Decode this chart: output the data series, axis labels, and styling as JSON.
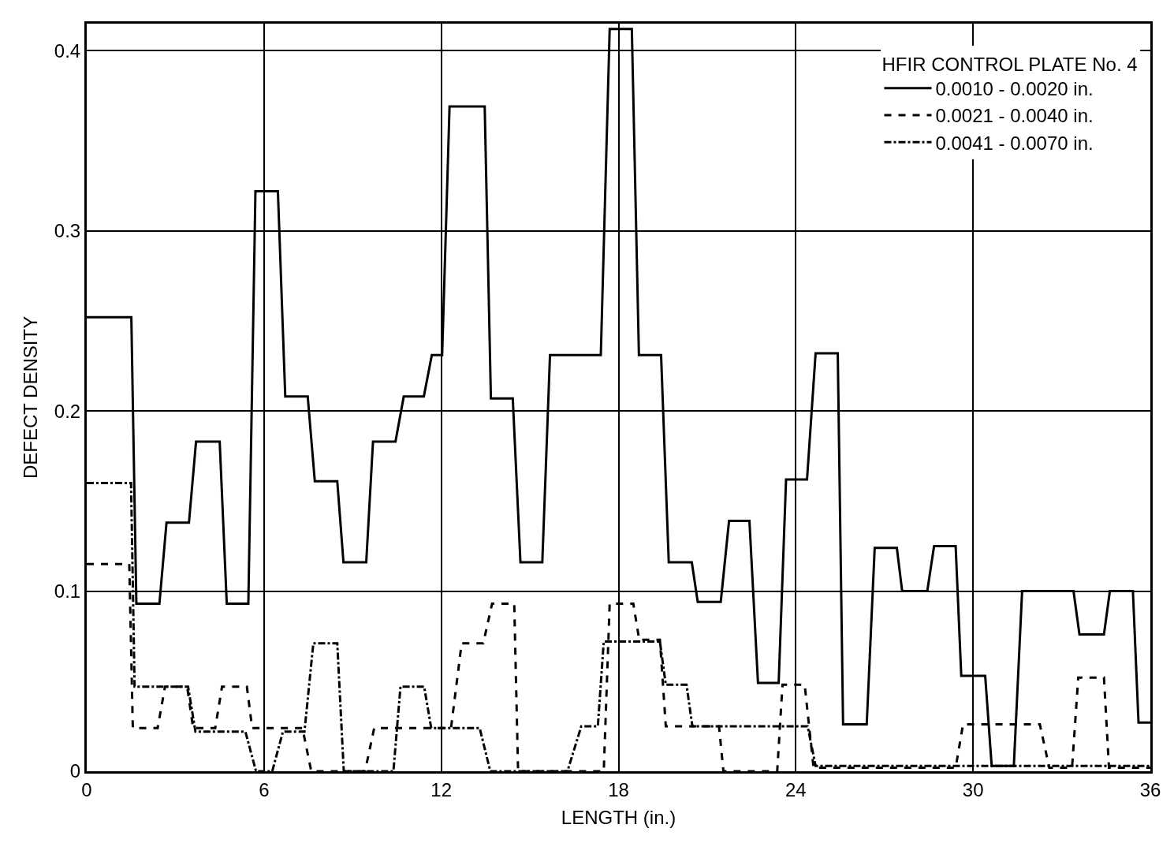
{
  "chart_data": {
    "type": "line",
    "xlabel": "LENGTH (in.)",
    "ylabel": "DEFECT DENSITY",
    "legend_title": "HFIR CONTROL PLATE No. 4",
    "xlim": [
      0,
      36
    ],
    "xticks": [
      0,
      6,
      12,
      18,
      24,
      30,
      36
    ],
    "ylim": [
      0,
      0.415
    ],
    "yticks": [
      0,
      0.1,
      0.2,
      0.3,
      0.4
    ],
    "grid": true,
    "legend": "top right",
    "marker": "none",
    "series": [
      {
        "name": "0.0010 - 0.0020 in.",
        "color": "#000000",
        "line_style": "solid",
        "x": [
          0,
          1.51,
          1.68,
          2.46,
          2.7,
          3.46,
          3.7,
          4.5,
          4.74,
          5.47,
          5.71,
          6.47,
          6.72,
          7.48,
          7.72,
          8.48,
          8.69,
          9.46,
          9.69,
          10.45,
          10.73,
          11.41,
          11.68,
          12.03,
          12.28,
          13.47,
          13.68,
          14.42,
          14.68,
          15.42,
          15.68,
          17.4,
          17.7,
          18.45,
          18.69,
          19.44,
          19.7,
          20.48,
          20.68,
          21.46,
          21.74,
          22.43,
          22.72,
          23.42,
          23.67,
          24.38,
          24.67,
          25.42,
          25.6,
          26.4,
          26.67,
          27.42,
          27.6,
          28.45,
          28.68,
          29.41,
          29.6,
          30.41,
          30.63,
          31.38,
          31.66,
          33.4,
          33.6,
          34.43,
          34.63,
          35.41,
          35.6,
          36
        ],
        "values": [
          0.252,
          0.252,
          0.093,
          0.093,
          0.138,
          0.138,
          0.183,
          0.183,
          0.093,
          0.093,
          0.322,
          0.322,
          0.208,
          0.208,
          0.161,
          0.161,
          0.116,
          0.116,
          0.183,
          0.183,
          0.208,
          0.208,
          0.231,
          0.231,
          0.369,
          0.369,
          0.207,
          0.207,
          0.116,
          0.116,
          0.231,
          0.231,
          0.412,
          0.412,
          0.231,
          0.231,
          0.116,
          0.116,
          0.094,
          0.094,
          0.139,
          0.139,
          0.049,
          0.049,
          0.162,
          0.162,
          0.232,
          0.232,
          0.026,
          0.026,
          0.124,
          0.124,
          0.1,
          0.1,
          0.125,
          0.125,
          0.053,
          0.053,
          0.003,
          0.003,
          0.1,
          0.1,
          0.076,
          0.076,
          0.1,
          0.1,
          0.027,
          0.027
        ]
      },
      {
        "name": "0.0021 - 0.0040 in.",
        "color": "#000000",
        "line_style": "dashed",
        "x": [
          0,
          1.44,
          1.56,
          2.4,
          2.65,
          3.4,
          3.6,
          4.35,
          4.58,
          5.42,
          5.6,
          7.3,
          7.6,
          9.42,
          9.73,
          12.33,
          12.69,
          13.42,
          13.72,
          14.47,
          14.6,
          17.5,
          17.7,
          18.5,
          18.7,
          19.4,
          19.6,
          21.4,
          21.55,
          23.37,
          23.55,
          24.3,
          24.6,
          29.41,
          29.66,
          32.26,
          32.58,
          33.35,
          33.56,
          34.43,
          34.6,
          36
        ],
        "values": [
          0.115,
          0.115,
          0.024,
          0.024,
          0.047,
          0.047,
          0.024,
          0.024,
          0.047,
          0.047,
          0.024,
          0.024,
          0,
          0,
          0.024,
          0.024,
          0.071,
          0.071,
          0.093,
          0.093,
          0,
          0,
          0.093,
          0.093,
          0.073,
          0.073,
          0.025,
          0.025,
          0,
          0,
          0.048,
          0.048,
          0.002,
          0.002,
          0.026,
          0.026,
          0.002,
          0.002,
          0.052,
          0.052,
          0.002,
          0.002
        ]
      },
      {
        "name": "0.0041 - 0.0070 in.",
        "color": "#000000",
        "line_style": "dashdot",
        "x": [
          0,
          1.5,
          1.62,
          3.43,
          3.68,
          5.37,
          5.73,
          6.28,
          6.64,
          7.37,
          7.67,
          8.48,
          8.7,
          10.38,
          10.62,
          11.42,
          11.66,
          13.3,
          13.66,
          16.27,
          16.74,
          17.3,
          17.5,
          19.4,
          19.6,
          20.3,
          20.5,
          24.4,
          24.67,
          36
        ],
        "values": [
          0.16,
          0.16,
          0.047,
          0.047,
          0.022,
          0.022,
          0,
          0,
          0.022,
          0.022,
          0.071,
          0.071,
          0,
          0,
          0.047,
          0.047,
          0.024,
          0.024,
          0,
          0,
          0.025,
          0.025,
          0.072,
          0.072,
          0.048,
          0.048,
          0.025,
          0.025,
          0.003,
          0.003
        ]
      }
    ]
  }
}
